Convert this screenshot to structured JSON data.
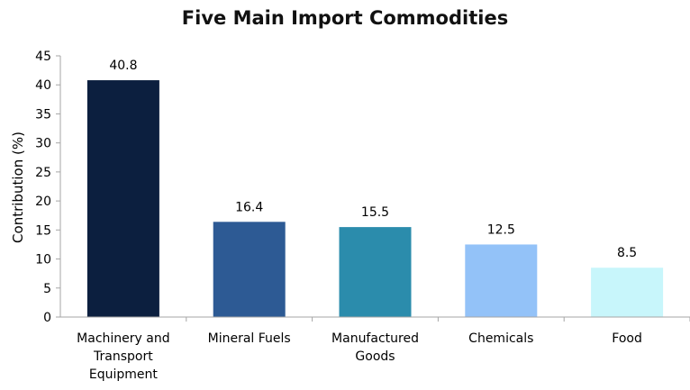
{
  "chart_data": {
    "type": "bar",
    "title": "Five Main Import Commodities",
    "xlabel": "",
    "ylabel": "Contribution (%)",
    "ylim": [
      0,
      45
    ],
    "yticks": [
      0,
      5,
      10,
      15,
      20,
      25,
      30,
      35,
      40,
      45
    ],
    "grid": false,
    "legend": "none",
    "categories": [
      [
        "Machinery and",
        "Transport",
        "Equipment"
      ],
      [
        "Mineral Fuels"
      ],
      [
        "Manufactured",
        "Goods"
      ],
      [
        "Chemicals"
      ],
      [
        "Food"
      ]
    ],
    "values": [
      40.8,
      16.4,
      15.5,
      12.5,
      8.5
    ],
    "data_labels": [
      "40.8",
      "16.4",
      "15.5",
      "12.5",
      "8.5"
    ],
    "colors": [
      "#0c1f3f",
      "#2d5a94",
      "#2b8cac",
      "#93c2f8",
      "#c8f6fb"
    ]
  }
}
